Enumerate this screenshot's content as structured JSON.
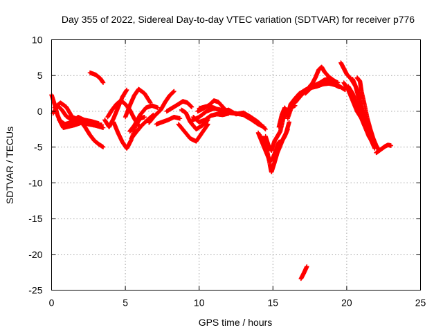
{
  "chart_data": {
    "type": "scatter",
    "title": "Day 355 of 2022, Sidereal Day-to-day VTEC variation (SDTVAR) for receiver p776",
    "xlabel": "GPS time / hours",
    "ylabel": "SDTVAR / TECUs",
    "xlim": [
      0,
      25
    ],
    "ylim": [
      -25,
      10
    ],
    "xticks": [
      0,
      5,
      10,
      15,
      20,
      25
    ],
    "yticks": [
      -25,
      -20,
      -15,
      -10,
      -5,
      0,
      5,
      10
    ],
    "grid": true,
    "marker": "+",
    "color": "#ff0000",
    "series_tracks": [
      [
        [
          0.0,
          2.3
        ],
        [
          0.2,
          1.0
        ],
        [
          0.4,
          -0.5
        ],
        [
          0.6,
          -1.5
        ],
        [
          0.8,
          -2.3
        ],
        [
          1.2,
          -2.1
        ],
        [
          1.6,
          -1.9
        ],
        [
          2.0,
          -1.6
        ],
        [
          2.5,
          -1.8
        ],
        [
          3.0,
          -2.0
        ],
        [
          3.5,
          -2.3
        ]
      ],
      [
        [
          0.1,
          -0.3
        ],
        [
          0.4,
          0.8
        ],
        [
          0.7,
          0.2
        ],
        [
          1.0,
          -0.7
        ],
        [
          1.4,
          -1.2
        ],
        [
          1.9,
          -1.5
        ],
        [
          2.4,
          -1.6
        ],
        [
          2.9,
          -1.8
        ],
        [
          3.4,
          -1.9
        ]
      ],
      [
        [
          0.5,
          -1.2
        ],
        [
          0.9,
          -1.8
        ],
        [
          1.4,
          -1.5
        ],
        [
          1.8,
          -0.8
        ],
        [
          2.2,
          -1.2
        ],
        [
          2.7,
          -1.4
        ],
        [
          3.2,
          -1.7
        ]
      ],
      [
        [
          0.2,
          0.5
        ],
        [
          0.6,
          1.2
        ],
        [
          1.0,
          0.6
        ],
        [
          1.4,
          -0.8
        ],
        [
          1.9,
          -1.2
        ],
        [
          2.3,
          -2.3
        ],
        [
          2.6,
          -3.3
        ],
        [
          2.9,
          -4.1
        ],
        [
          3.2,
          -4.6
        ],
        [
          3.5,
          -5.0
        ]
      ],
      [
        [
          2.6,
          5.4
        ],
        [
          3.0,
          5.1
        ],
        [
          3.3,
          4.6
        ],
        [
          3.5,
          4.0
        ]
      ],
      [
        [
          3.6,
          -1.2
        ],
        [
          3.9,
          -2.2
        ],
        [
          4.2,
          -1.0
        ],
        [
          4.5,
          0.5
        ],
        [
          4.8,
          2.0
        ],
        [
          5.1,
          3.0
        ]
      ],
      [
        [
          3.8,
          -0.8
        ],
        [
          4.1,
          0.2
        ],
        [
          4.4,
          1.0
        ],
        [
          4.7,
          1.5
        ],
        [
          5.0,
          1.0
        ],
        [
          5.3,
          0.2
        ],
        [
          5.6,
          -1.0
        ],
        [
          5.9,
          -2.0
        ]
      ],
      [
        [
          4.2,
          -1.5
        ],
        [
          4.5,
          -3.0
        ],
        [
          4.8,
          -4.3
        ],
        [
          5.1,
          -5.2
        ],
        [
          5.4,
          -4.0
        ],
        [
          5.7,
          -2.0
        ],
        [
          6.0,
          -1.0
        ],
        [
          6.3,
          -0.8
        ]
      ],
      [
        [
          5.0,
          -0.8
        ],
        [
          5.3,
          0.8
        ],
        [
          5.6,
          2.2
        ],
        [
          5.9,
          3.1
        ],
        [
          6.3,
          2.5
        ],
        [
          6.7,
          1.2
        ]
      ],
      [
        [
          5.3,
          -2.8
        ],
        [
          5.6,
          -2.0
        ],
        [
          6.0,
          -0.5
        ],
        [
          6.4,
          0.5
        ],
        [
          6.8,
          0.8
        ],
        [
          7.2,
          0.5
        ]
      ],
      [
        [
          5.4,
          -3.8
        ],
        [
          5.7,
          -3.0
        ],
        [
          6.1,
          -2.0
        ],
        [
          6.5,
          -1.2
        ],
        [
          6.9,
          -0.5
        ]
      ],
      [
        [
          6.6,
          -1.6
        ],
        [
          7.0,
          -0.6
        ],
        [
          7.4,
          0.2
        ],
        [
          7.7,
          1.3
        ],
        [
          8.0,
          2.2
        ],
        [
          8.3,
          2.8
        ]
      ],
      [
        [
          7.1,
          -1.8
        ],
        [
          7.5,
          -1.5
        ],
        [
          7.9,
          -1.2
        ],
        [
          8.3,
          -0.8
        ],
        [
          8.7,
          -1.0
        ]
      ],
      [
        [
          7.8,
          0.0
        ],
        [
          8.2,
          0.5
        ],
        [
          8.6,
          1.0
        ],
        [
          8.9,
          1.4
        ],
        [
          9.2,
          1.2
        ],
        [
          9.5,
          0.6
        ]
      ],
      [
        [
          8.6,
          -1.8
        ],
        [
          9.0,
          -2.8
        ],
        [
          9.4,
          -3.8
        ],
        [
          9.8,
          -4.2
        ],
        [
          10.2,
          -3.0
        ],
        [
          10.6,
          -1.8
        ]
      ],
      [
        [
          8.8,
          0.2
        ],
        [
          9.1,
          -0.2
        ],
        [
          9.4,
          -1.5
        ],
        [
          9.8,
          -2.5
        ],
        [
          10.2,
          -2.0
        ],
        [
          10.6,
          -1.2
        ]
      ],
      [
        [
          9.6,
          -0.8
        ],
        [
          10.0,
          -1.5
        ],
        [
          10.4,
          -1.2
        ],
        [
          10.8,
          -0.6
        ],
        [
          11.2,
          -0.4
        ],
        [
          11.6,
          -0.5
        ],
        [
          12.0,
          -0.3
        ]
      ],
      [
        [
          9.9,
          0.0
        ],
        [
          10.3,
          0.4
        ],
        [
          10.7,
          0.9
        ],
        [
          11.0,
          1.5
        ],
        [
          11.3,
          1.3
        ],
        [
          11.7,
          0.4
        ]
      ],
      [
        [
          9.5,
          -1.3
        ],
        [
          10.0,
          -0.8
        ],
        [
          10.5,
          0.0
        ],
        [
          11.0,
          0.4
        ],
        [
          11.5,
          0.2
        ],
        [
          12.0,
          -0.2
        ],
        [
          12.5,
          -0.3
        ],
        [
          13.0,
          -0.5
        ],
        [
          13.5,
          -1.1
        ],
        [
          14.0,
          -1.8
        ],
        [
          14.4,
          -2.2
        ]
      ],
      [
        [
          10.0,
          0.4
        ],
        [
          10.5,
          0.7
        ],
        [
          11.0,
          0.5
        ],
        [
          11.5,
          0.0
        ],
        [
          12.0,
          0.2
        ],
        [
          12.5,
          -0.4
        ],
        [
          13.0,
          -0.2
        ],
        [
          13.5,
          -0.8
        ],
        [
          14.0,
          -1.5
        ],
        [
          14.5,
          -2.5
        ]
      ],
      [
        [
          14.0,
          -3.0
        ],
        [
          14.2,
          -4.0
        ],
        [
          14.4,
          -5.0
        ],
        [
          14.6,
          -6.0
        ],
        [
          14.8,
          -7.0
        ],
        [
          15.0,
          -6.5
        ],
        [
          15.2,
          -5.5
        ],
        [
          15.4,
          -4.3
        ],
        [
          15.6,
          -4.2
        ],
        [
          15.8,
          -3.5
        ],
        [
          16.0,
          -2.5
        ]
      ],
      [
        [
          14.2,
          -3.5
        ],
        [
          14.4,
          -4.5
        ],
        [
          14.6,
          -5.5
        ],
        [
          14.8,
          -7.5
        ],
        [
          14.9,
          -8.5
        ],
        [
          15.1,
          -7.2
        ],
        [
          15.3,
          -5.8
        ],
        [
          15.5,
          -4.8
        ],
        [
          15.7,
          -3.8
        ],
        [
          15.9,
          -3.0
        ],
        [
          16.1,
          -1.5
        ]
      ],
      [
        [
          14.5,
          -3.5
        ],
        [
          14.7,
          -4.8
        ],
        [
          14.9,
          -5.5
        ],
        [
          15.1,
          -4.2
        ],
        [
          15.3,
          -3.5
        ],
        [
          15.5,
          -2.8
        ],
        [
          15.7,
          -1.0
        ],
        [
          15.9,
          0.0
        ],
        [
          16.2,
          0.5
        ],
        [
          16.5,
          0.8
        ]
      ],
      [
        [
          15.4,
          -2.2
        ],
        [
          15.6,
          -0.5
        ],
        [
          15.8,
          0.5
        ],
        [
          16.0,
          -0.5
        ],
        [
          16.2,
          1.0
        ],
        [
          16.5,
          1.8
        ],
        [
          16.8,
          2.5
        ],
        [
          17.1,
          2.8
        ]
      ],
      [
        [
          16.0,
          -1.0
        ],
        [
          16.3,
          0.8
        ],
        [
          16.6,
          2.0
        ],
        [
          16.9,
          2.6
        ],
        [
          17.2,
          3.0
        ],
        [
          17.5,
          3.3
        ],
        [
          17.8,
          3.8
        ]
      ],
      [
        [
          16.2,
          0.5
        ],
        [
          16.6,
          1.8
        ],
        [
          17.0,
          2.5
        ],
        [
          17.4,
          3.2
        ],
        [
          17.8,
          3.6
        ],
        [
          18.2,
          4.0
        ],
        [
          18.5,
          4.4
        ],
        [
          18.8,
          4.5
        ],
        [
          19.1,
          4.3
        ],
        [
          19.4,
          4.0
        ]
      ],
      [
        [
          16.5,
          1.2
        ],
        [
          16.9,
          2.2
        ],
        [
          17.3,
          3.0
        ],
        [
          17.7,
          4.0
        ],
        [
          17.9,
          4.8
        ],
        [
          18.1,
          5.8
        ],
        [
          18.3,
          6.2
        ],
        [
          18.5,
          5.5
        ],
        [
          18.8,
          4.8
        ],
        [
          19.2,
          4.2
        ]
      ],
      [
        [
          17.2,
          2.5
        ],
        [
          17.6,
          3.3
        ],
        [
          18.0,
          3.5
        ],
        [
          18.4,
          3.8
        ],
        [
          18.8,
          3.9
        ],
        [
          19.2,
          3.7
        ],
        [
          19.5,
          3.4
        ]
      ],
      [
        [
          18.9,
          4.5
        ],
        [
          19.2,
          4.0
        ],
        [
          19.5,
          3.5
        ],
        [
          19.9,
          3.0
        ]
      ],
      [
        [
          19.6,
          6.8
        ],
        [
          19.8,
          6.0
        ],
        [
          20.0,
          5.2
        ],
        [
          20.3,
          4.5
        ],
        [
          20.6,
          3.5
        ],
        [
          20.9,
          2.0
        ]
      ],
      [
        [
          19.8,
          4.0
        ],
        [
          20.1,
          3.0
        ],
        [
          20.4,
          1.5
        ],
        [
          20.7,
          0.0
        ],
        [
          21.0,
          -1.0
        ],
        [
          21.2,
          -2.0
        ],
        [
          21.5,
          -3.5
        ],
        [
          21.8,
          -4.5
        ],
        [
          22.0,
          -5.0
        ]
      ],
      [
        [
          20.1,
          3.5
        ],
        [
          20.4,
          2.5
        ],
        [
          20.7,
          1.0
        ],
        [
          21.0,
          -0.5
        ],
        [
          21.3,
          -2.0
        ],
        [
          21.6,
          -3.8
        ],
        [
          21.9,
          -5.2
        ]
      ],
      [
        [
          20.4,
          4.5
        ],
        [
          20.6,
          3.5
        ],
        [
          20.8,
          2.0
        ],
        [
          21.0,
          0.5
        ],
        [
          21.2,
          -0.8
        ],
        [
          21.4,
          -2.5
        ],
        [
          21.6,
          -3.5
        ]
      ],
      [
        [
          20.7,
          4.7
        ],
        [
          20.9,
          4.2
        ],
        [
          21.0,
          2.8
        ],
        [
          21.2,
          1.0
        ],
        [
          21.4,
          -1.0
        ],
        [
          21.6,
          -2.5
        ],
        [
          21.8,
          -3.8
        ],
        [
          22.0,
          -4.8
        ],
        [
          22.2,
          -5.5
        ]
      ],
      [
        [
          22.0,
          -5.8
        ],
        [
          22.2,
          -5.5
        ],
        [
          22.4,
          -5.2
        ],
        [
          22.6,
          -4.9
        ],
        [
          22.8,
          -4.7
        ],
        [
          23.0,
          -4.8
        ]
      ],
      [
        [
          16.9,
          -23.4
        ],
        [
          17.1,
          -22.6
        ],
        [
          17.3,
          -21.7
        ]
      ]
    ]
  }
}
